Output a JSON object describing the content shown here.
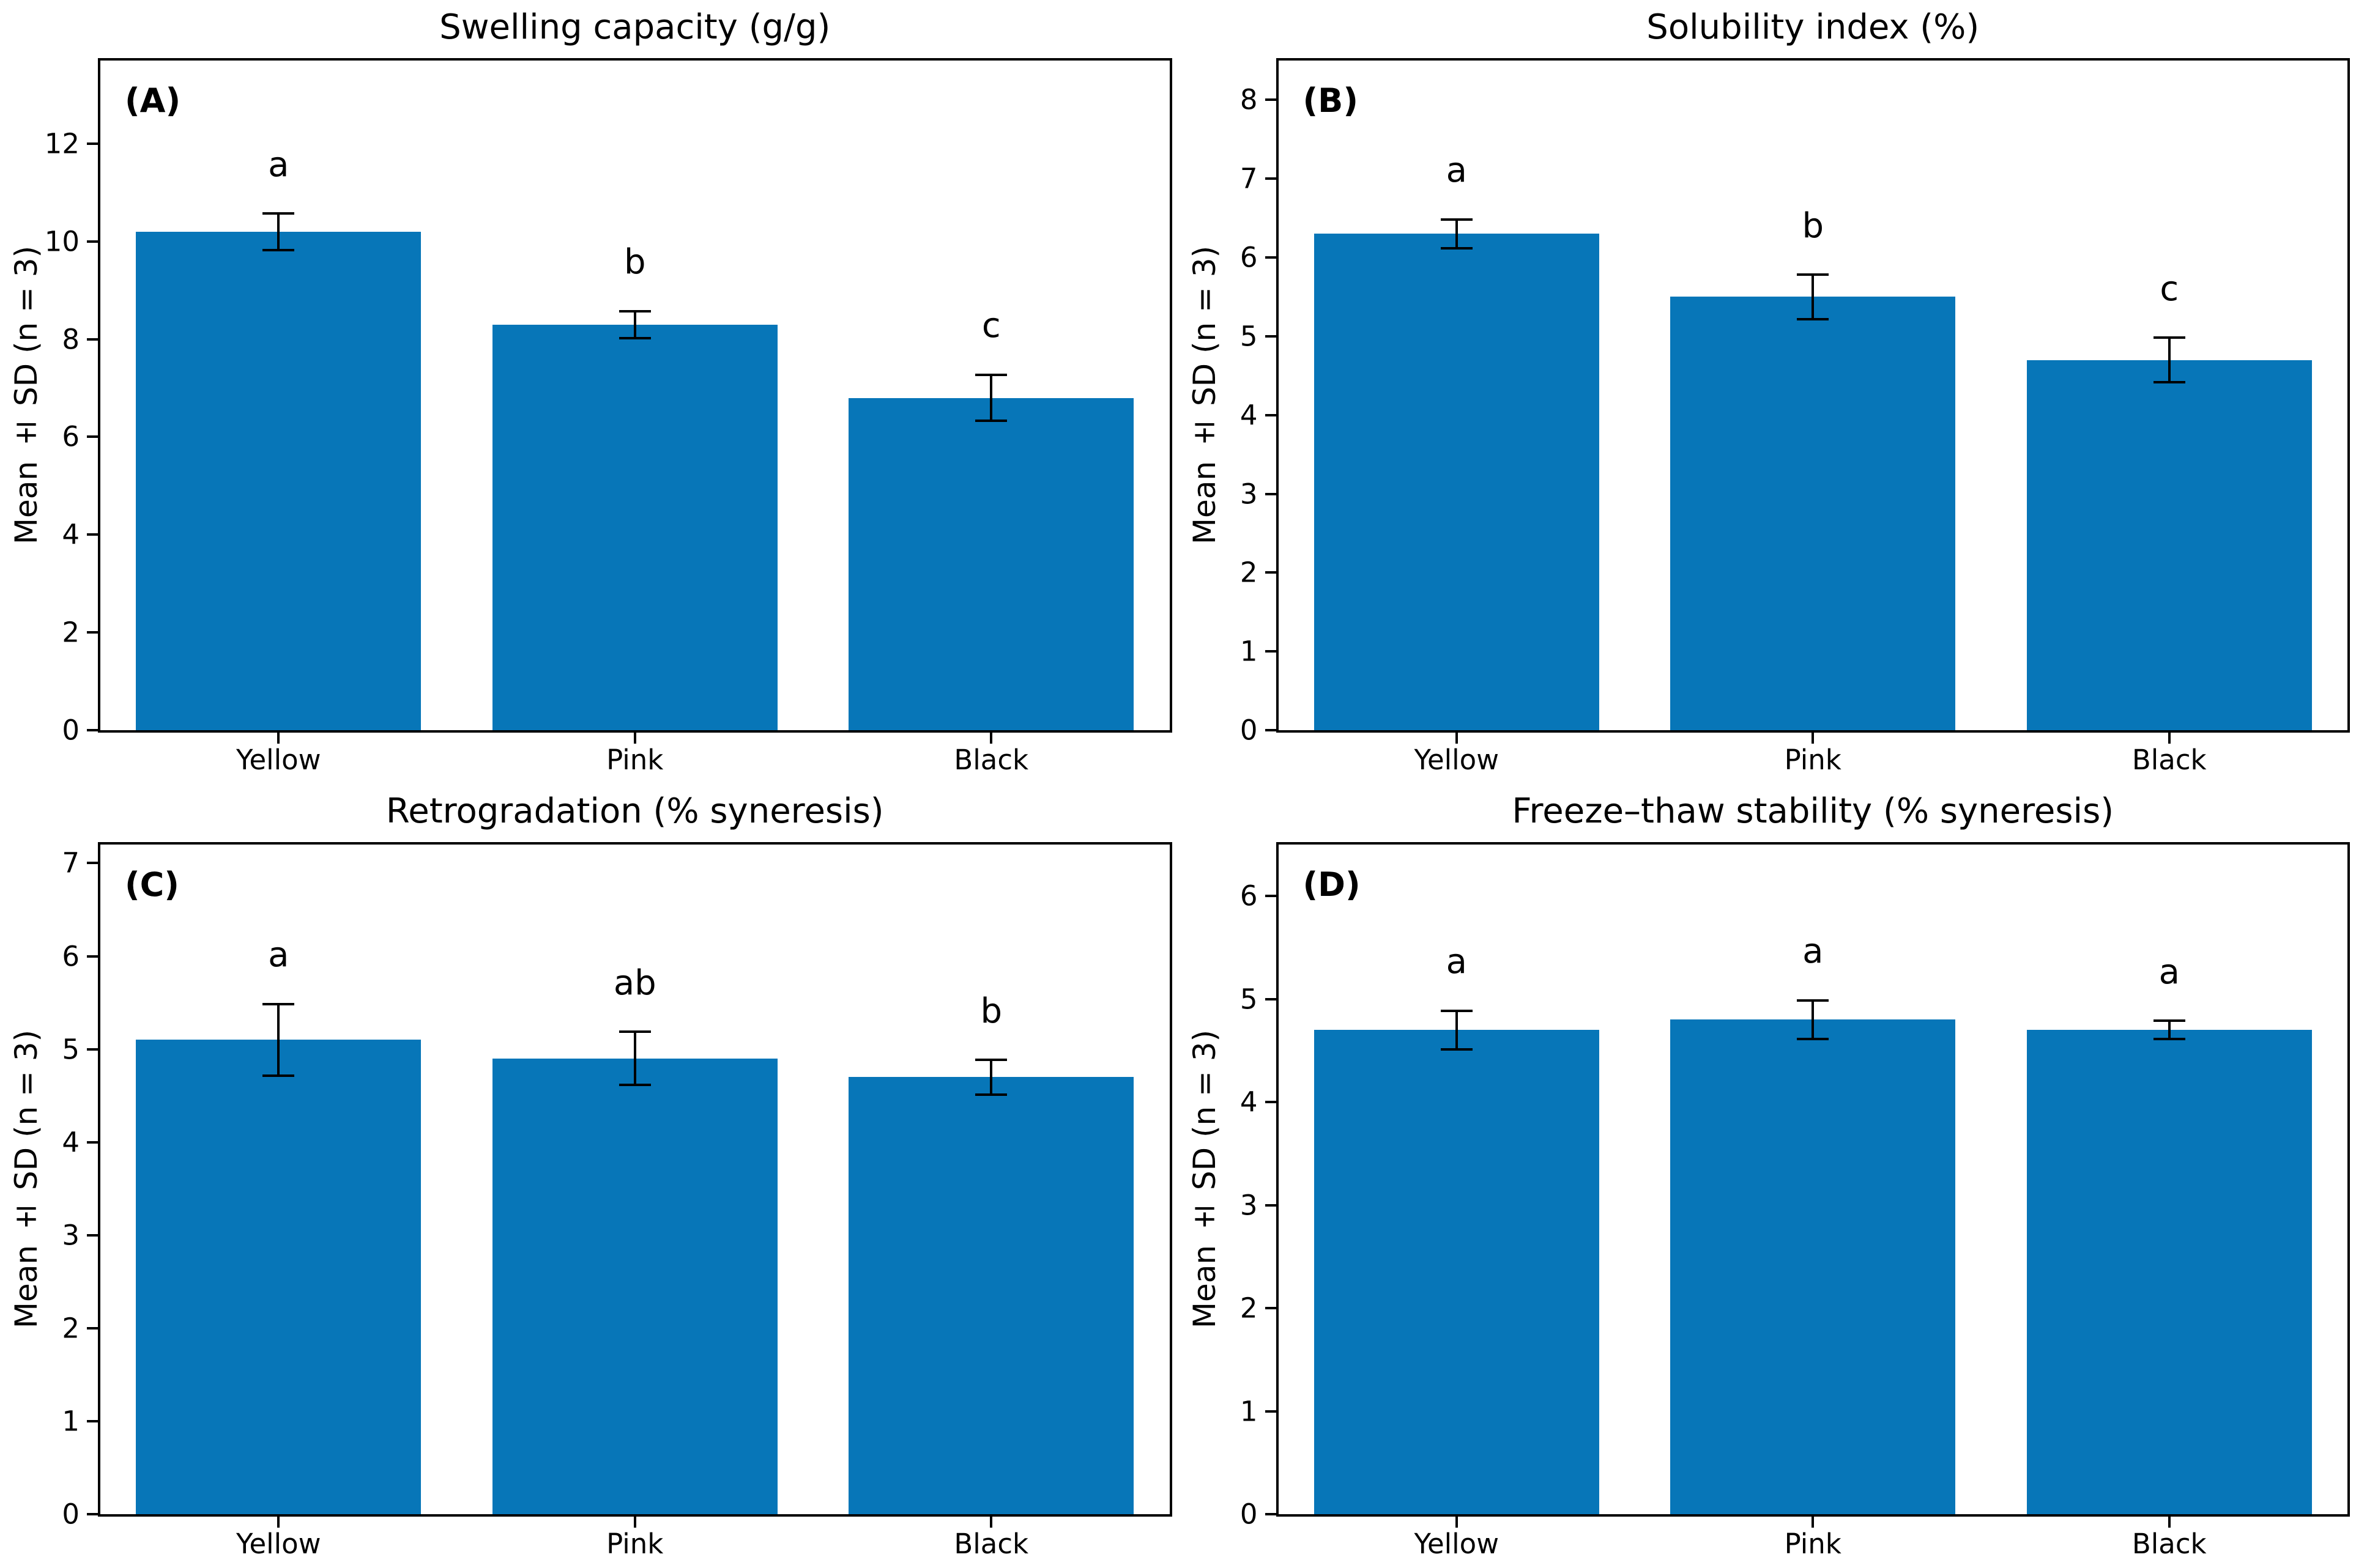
{
  "style": {
    "background": "#ffffff",
    "bar_color": "#0776b8",
    "axis_color": "#000000",
    "error_color": "#000000",
    "text_color": "#000000"
  },
  "chart_data": [
    {
      "type": "bar",
      "panel_label": "(A)",
      "title": "Swelling capacity (g/g)",
      "ylabel": "Mean ± SD (n = 3)",
      "categories": [
        "Yellow",
        "Pink",
        "Black"
      ],
      "values": [
        10.2,
        8.3,
        6.8
      ],
      "errors": [
        0.4,
        0.3,
        0.5
      ],
      "sig_letters": [
        "a",
        "b",
        "c"
      ],
      "ylim": [
        0,
        13.7
      ],
      "yticks": [
        0,
        2,
        4,
        6,
        8,
        10,
        12
      ],
      "bar_color": "#0776b8",
      "grid": false,
      "legend": "none"
    },
    {
      "type": "bar",
      "panel_label": "(B)",
      "title": "Solubility index (%)",
      "ylabel": "Mean ± SD (n = 3)",
      "categories": [
        "Yellow",
        "Pink",
        "Black"
      ],
      "values": [
        6.3,
        5.5,
        4.7
      ],
      "errors": [
        0.2,
        0.3,
        0.3
      ],
      "sig_letters": [
        "a",
        "b",
        "c"
      ],
      "ylim": [
        0,
        8.5
      ],
      "yticks": [
        0,
        1,
        2,
        3,
        4,
        5,
        6,
        7,
        8
      ],
      "bar_color": "#0776b8",
      "grid": false,
      "legend": "none"
    },
    {
      "type": "bar",
      "panel_label": "(C)",
      "title": "Retrogradation (% syneresis)",
      "ylabel": "Mean ± SD (n = 3)",
      "categories": [
        "Yellow",
        "Pink",
        "Black"
      ],
      "values": [
        5.1,
        4.9,
        4.7
      ],
      "errors": [
        0.4,
        0.3,
        0.2
      ],
      "sig_letters": [
        "a",
        "ab",
        "b"
      ],
      "ylim": [
        0,
        7.2
      ],
      "yticks": [
        0,
        1,
        2,
        3,
        4,
        5,
        6,
        7
      ],
      "bar_color": "#0776b8",
      "grid": false,
      "legend": "none"
    },
    {
      "type": "bar",
      "panel_label": "(D)",
      "title": "Freeze–thaw stability (% syneresis)",
      "ylabel": "Mean ± SD (n = 3)",
      "categories": [
        "Yellow",
        "Pink",
        "Black"
      ],
      "values": [
        4.7,
        4.8,
        4.7
      ],
      "errors": [
        0.2,
        0.2,
        0.1
      ],
      "sig_letters": [
        "a",
        "a",
        "a"
      ],
      "ylim": [
        0,
        6.5
      ],
      "yticks": [
        0,
        1,
        2,
        3,
        4,
        5,
        6
      ],
      "bar_color": "#0776b8",
      "grid": false,
      "legend": "none"
    }
  ]
}
